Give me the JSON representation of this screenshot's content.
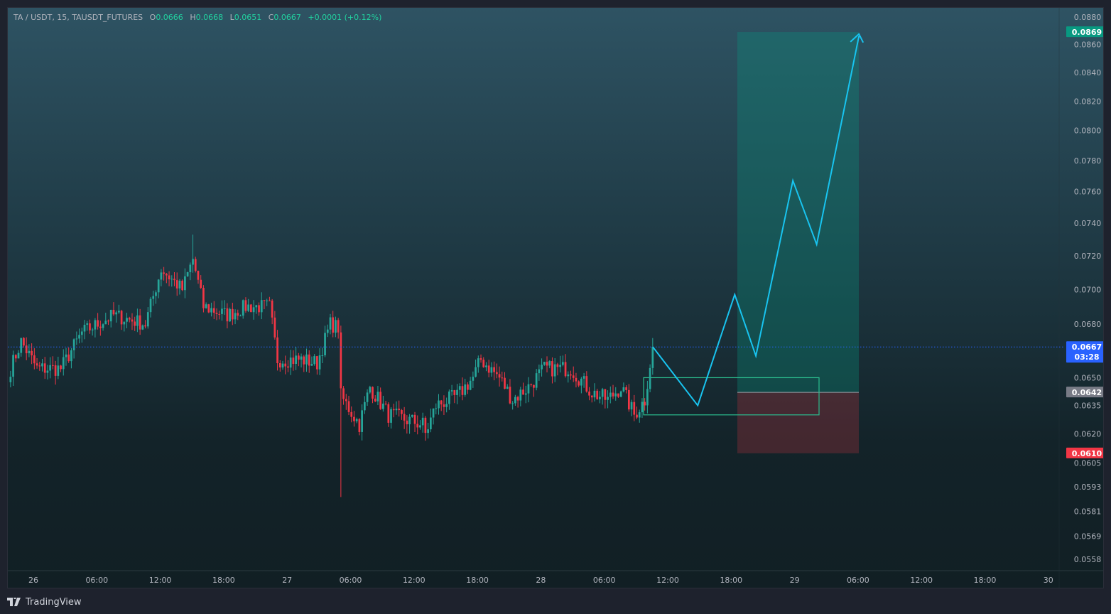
{
  "legend": {
    "symbol": "TA / USDT, 15, TAUSDT_FUTURES",
    "o_label": "O",
    "o": "0.0666",
    "h_label": "H",
    "h": "0.0668",
    "l_label": "L",
    "l": "0.0651",
    "c_label": "C",
    "c": "0.0667",
    "change": "+0.0001 (+0.12%)"
  },
  "colors": {
    "up": "#26a69a",
    "down": "#f23645",
    "upBright": "#22d3a0",
    "current": "#2962ff",
    "zigzag": "#18c4f0",
    "target": "#089981",
    "stop": "#f23645",
    "entry": "#787b86"
  },
  "price_axis": {
    "ticks": [
      "0.0880",
      "0.0860",
      "0.0840",
      "0.0820",
      "0.0800",
      "0.0780",
      "0.0760",
      "0.0740",
      "0.0720",
      "0.0700",
      "0.0680",
      "0.0650",
      "0.0635",
      "0.0620",
      "0.0605",
      "0.0593",
      "0.0581",
      "0.0569",
      "0.0558"
    ],
    "current_price": "0.0667",
    "countdown": "03:28",
    "target_price": "0.0869",
    "entry_price": "0.0642",
    "stop_price": "0.0610"
  },
  "time_axis": {
    "ticks": [
      "26",
      "06:00",
      "12:00",
      "18:00",
      "27",
      "06:00",
      "12:00",
      "18:00",
      "28",
      "06:00",
      "12:00",
      "18:00",
      "29",
      "06:00",
      "12:00",
      "18:00",
      "30"
    ]
  },
  "chart_data": {
    "type": "candlestick",
    "interval": "15m",
    "scale": "log",
    "keypoints": [
      [
        0,
        0.0655
      ],
      [
        4,
        0.067
      ],
      [
        10,
        0.0655
      ],
      [
        19,
        0.0655
      ],
      [
        27,
        0.0675
      ],
      [
        39,
        0.0685
      ],
      [
        51,
        0.068
      ],
      [
        57,
        0.0712
      ],
      [
        65,
        0.07
      ],
      [
        69,
        0.0718
      ],
      [
        73,
        0.069
      ],
      [
        82,
        0.0685
      ],
      [
        89,
        0.069
      ],
      [
        98,
        0.069
      ],
      [
        101,
        0.066
      ],
      [
        110,
        0.066
      ],
      [
        116,
        0.0658
      ],
      [
        121,
        0.068
      ],
      [
        124,
        0.0678
      ],
      [
        125,
        0.064
      ],
      [
        132,
        0.0625
      ],
      [
        136,
        0.0645
      ],
      [
        143,
        0.063
      ],
      [
        156,
        0.0625
      ],
      [
        157,
        0.062
      ],
      [
        161,
        0.0635
      ],
      [
        169,
        0.064
      ],
      [
        175,
        0.065
      ],
      [
        178,
        0.066
      ],
      [
        185,
        0.065
      ],
      [
        190,
        0.0638
      ],
      [
        196,
        0.0645
      ],
      [
        202,
        0.0655
      ],
      [
        212,
        0.0655
      ],
      [
        220,
        0.0642
      ],
      [
        226,
        0.0638
      ],
      [
        231,
        0.0645
      ],
      [
        236,
        0.063
      ],
      [
        240,
        0.0638
      ],
      [
        243,
        0.0667
      ]
    ],
    "projection_path": [
      [
        0.0667,
        0
      ],
      [
        0.0635,
        17
      ],
      [
        0.0697,
        31
      ],
      [
        0.0662,
        39
      ],
      [
        0.0767,
        53
      ],
      [
        0.0727,
        62
      ],
      [
        0.0866,
        78
      ]
    ],
    "position": {
      "target": 0.0869,
      "entry": 0.0642,
      "stop": 0.061
    },
    "zone": {
      "top": 0.065,
      "bottom": 0.063
    }
  },
  "footer": {
    "brand": "TradingView"
  }
}
